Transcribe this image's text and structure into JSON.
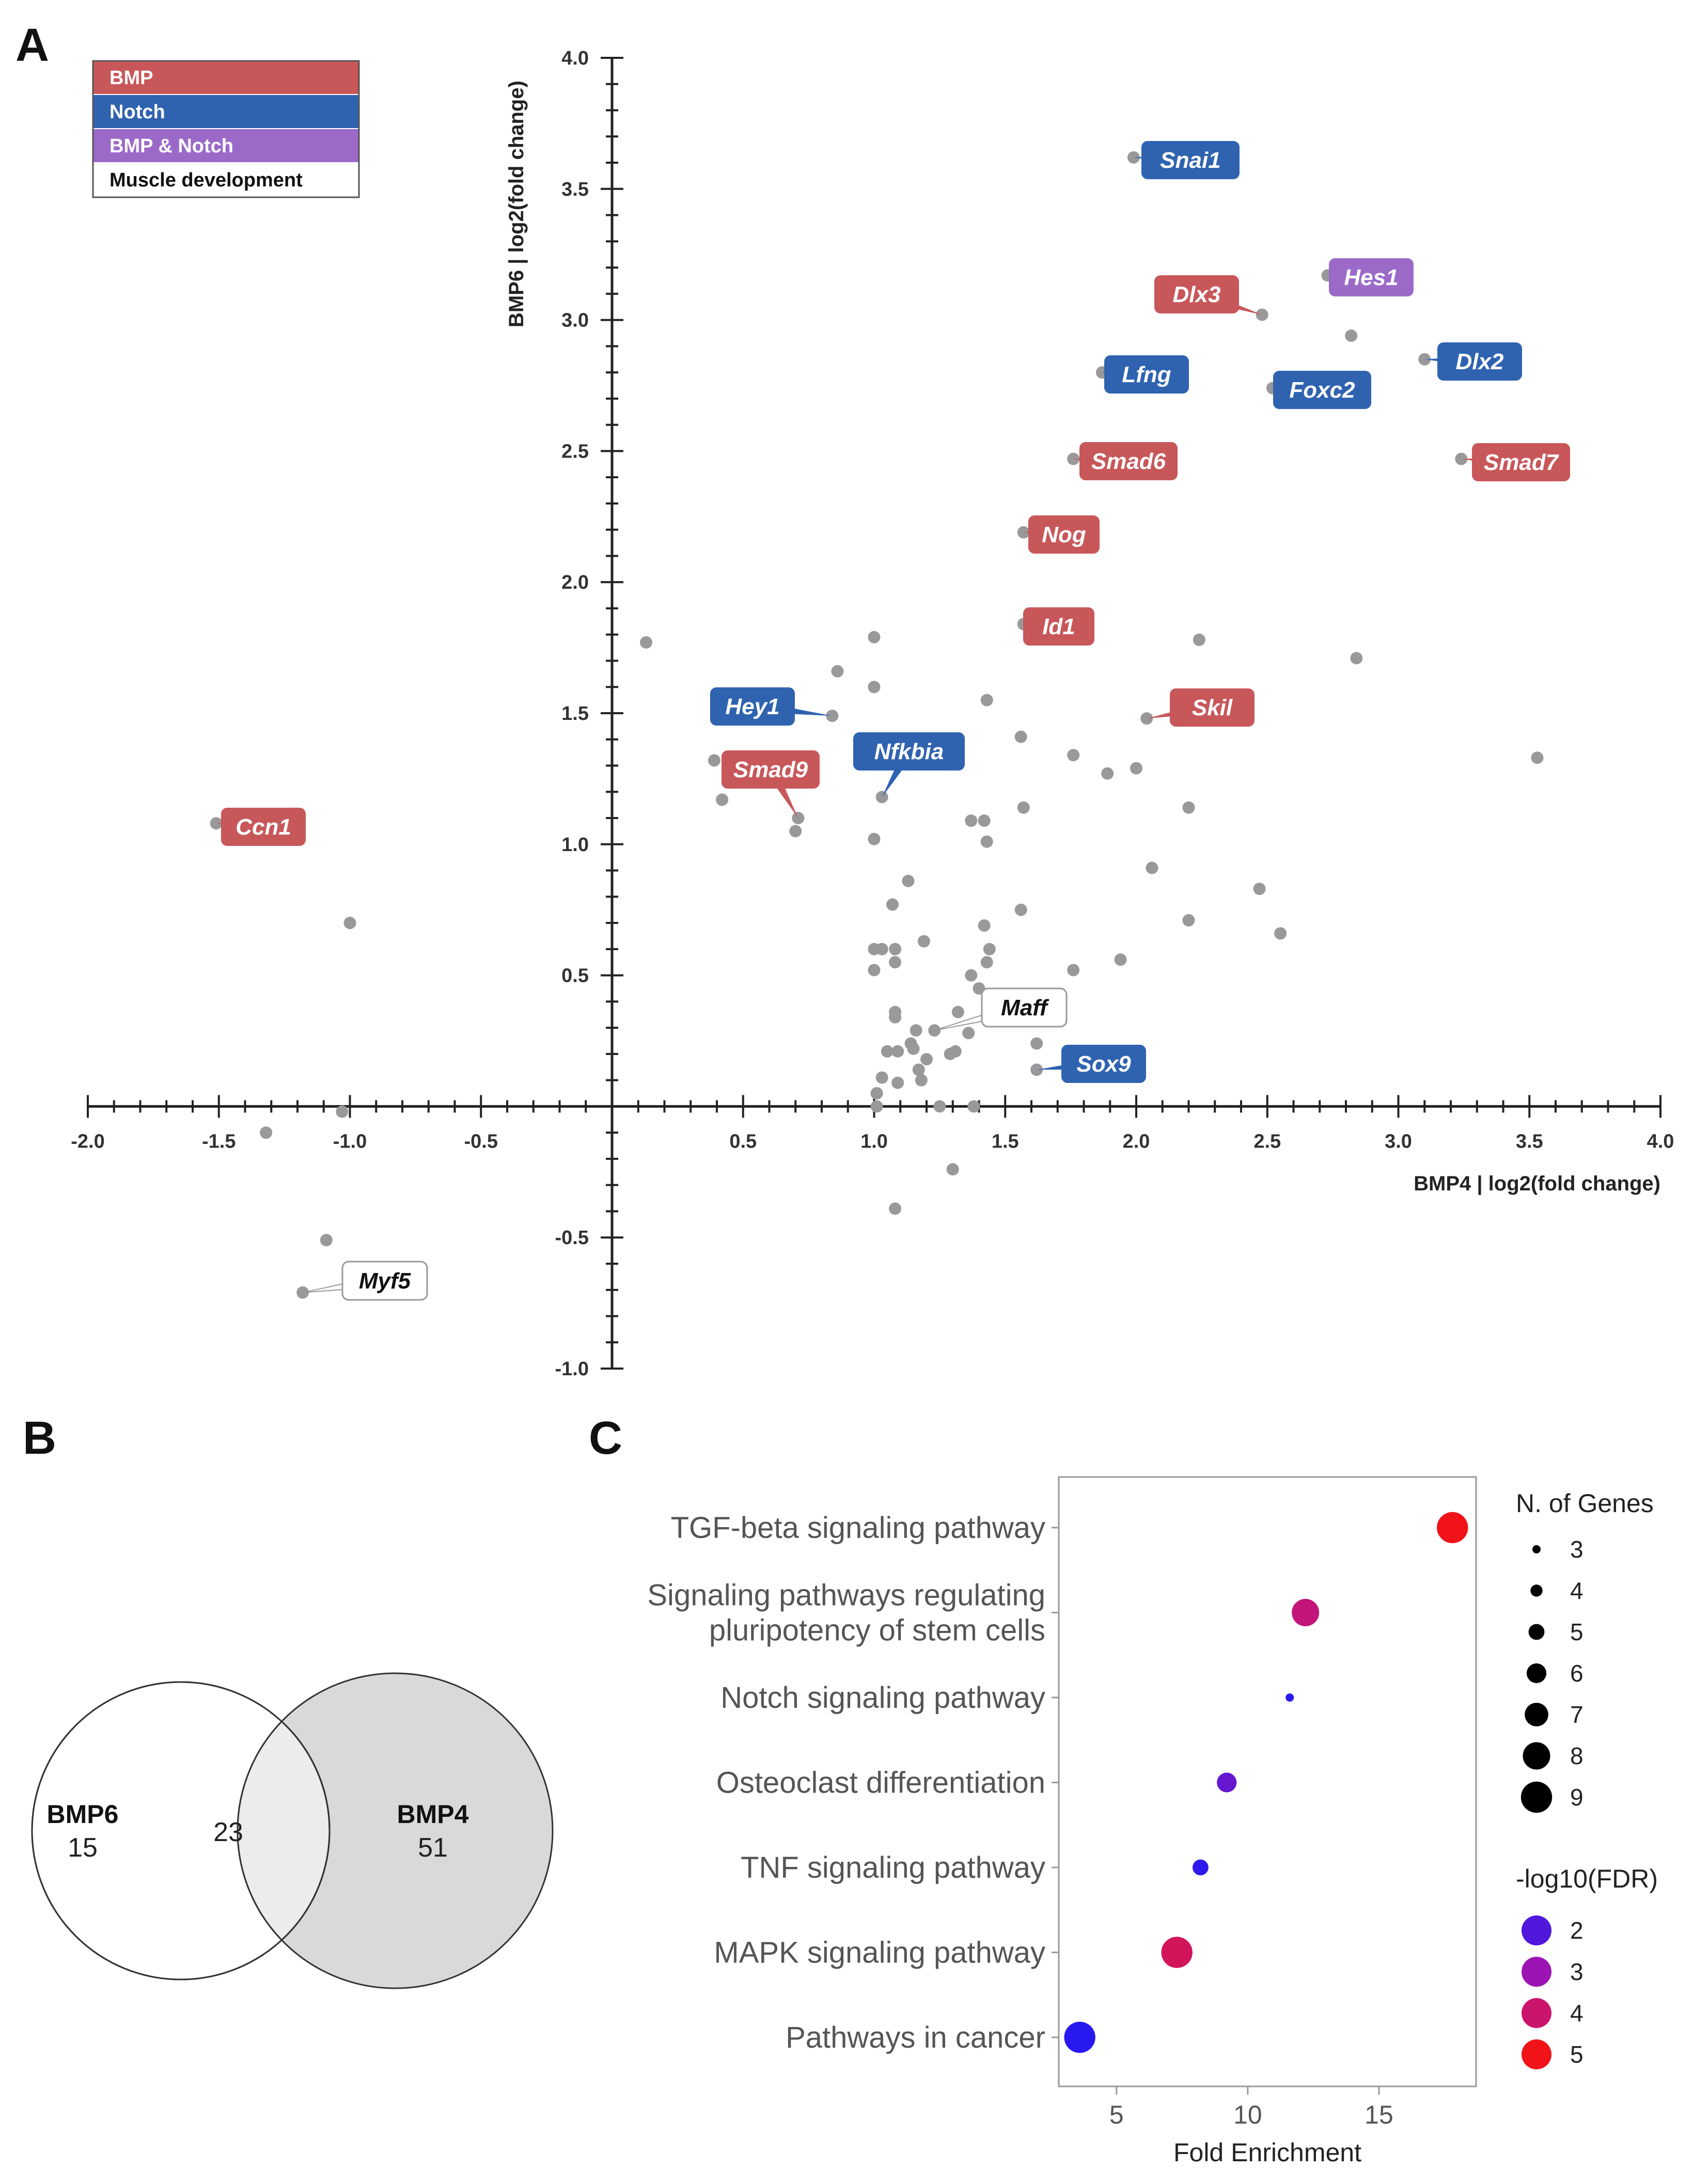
{
  "panel_letters": {
    "a": "A",
    "b": "B",
    "c": "C"
  },
  "chart_data": [
    {
      "type": "scatter",
      "panel": "A",
      "xlabel": "BMP4 | log2(fold change)",
      "ylabel": "BMP6 | log2(fold change)",
      "xlim": [
        -2.0,
        4.0
      ],
      "ylim": [
        -1.0,
        4.0
      ],
      "x_ticks": [
        "-2.0",
        "-1.5",
        "-1.0",
        "-0.5",
        "0.5",
        "1.0",
        "1.5",
        "2.0",
        "2.5",
        "3.0",
        "3.5",
        "4.0"
      ],
      "y_ticks": [
        "-1.0",
        "-0.5",
        "0.5",
        "1.0",
        "1.5",
        "2.0",
        "2.5",
        "3.0",
        "3.5",
        "4.0"
      ],
      "legend": [
        {
          "label": "BMP",
          "color": "#c8575a"
        },
        {
          "label": "Notch",
          "color": "#2f63b0"
        },
        {
          "label": "BMP & Notch",
          "color": "#9b6ac9"
        },
        {
          "label": "Muscle development",
          "color": "#ffffff"
        }
      ],
      "labeled_genes": [
        {
          "name": "Snai1",
          "x": 1.99,
          "y": 3.62,
          "category": "Notch"
        },
        {
          "name": "Dlx3",
          "x": 2.48,
          "y": 3.02,
          "category": "BMP"
        },
        {
          "name": "Hes1",
          "x": 2.73,
          "y": 3.17,
          "category": "BMP & Notch"
        },
        {
          "name": "Lfng",
          "x": 1.87,
          "y": 2.8,
          "category": "Notch"
        },
        {
          "name": "Foxc2",
          "x": 2.52,
          "y": 2.74,
          "category": "Notch"
        },
        {
          "name": "Dlx2",
          "x": 3.1,
          "y": 2.85,
          "category": "Notch"
        },
        {
          "name": "Smad6",
          "x": 1.76,
          "y": 2.47,
          "category": "BMP"
        },
        {
          "name": "Smad7",
          "x": 3.24,
          "y": 2.47,
          "category": "BMP"
        },
        {
          "name": "Nog",
          "x": 1.57,
          "y": 2.19,
          "category": "BMP"
        },
        {
          "name": "Id1",
          "x": 1.57,
          "y": 1.84,
          "category": "BMP"
        },
        {
          "name": "Hey1",
          "x": 0.84,
          "y": 1.49,
          "category": "Notch"
        },
        {
          "name": "Skil",
          "x": 2.04,
          "y": 1.48,
          "category": "BMP"
        },
        {
          "name": "Nfkbia",
          "x": 1.03,
          "y": 1.18,
          "category": "Notch"
        },
        {
          "name": "Smad9",
          "x": 0.71,
          "y": 1.1,
          "category": "BMP"
        },
        {
          "name": "Ccn1",
          "x": -1.51,
          "y": 1.08,
          "category": "BMP"
        },
        {
          "name": "Maff",
          "x": 1.23,
          "y": 0.29,
          "category": "Muscle development"
        },
        {
          "name": "Sox9",
          "x": 1.62,
          "y": 0.14,
          "category": "Notch"
        },
        {
          "name": "Myf5",
          "x": -1.18,
          "y": -0.71,
          "category": "Muscle development"
        }
      ],
      "other_points": [
        [
          0.13,
          1.77
        ],
        [
          0.39,
          1.32
        ],
        [
          0.42,
          1.17
        ],
        [
          0.7,
          1.05
        ],
        [
          0.86,
          1.66
        ],
        [
          1.0,
          1.79
        ],
        [
          1.0,
          1.6
        ],
        [
          1.0,
          1.02
        ],
        [
          1.13,
          0.86
        ],
        [
          1.07,
          0.77
        ],
        [
          1.0,
          0.6
        ],
        [
          1.03,
          0.6
        ],
        [
          1.08,
          0.6
        ],
        [
          1.0,
          0.52
        ],
        [
          1.08,
          0.55
        ],
        [
          1.08,
          0.36
        ],
        [
          1.08,
          0.34
        ],
        [
          1.16,
          0.29
        ],
        [
          1.09,
          0.21
        ],
        [
          1.05,
          0.21
        ],
        [
          1.14,
          0.24
        ],
        [
          1.15,
          0.22
        ],
        [
          1.17,
          0.14
        ],
        [
          1.2,
          0.18
        ],
        [
          1.03,
          0.11
        ],
        [
          1.09,
          0.09
        ],
        [
          1.18,
          0.1
        ],
        [
          1.01,
          0.05
        ],
        [
          1.01,
          0.0
        ],
        [
          1.25,
          0.0
        ],
        [
          1.38,
          0.0
        ],
        [
          1.3,
          -0.24
        ],
        [
          1.08,
          -0.39
        ],
        [
          1.19,
          0.63
        ],
        [
          1.32,
          0.36
        ],
        [
          1.37,
          0.5
        ],
        [
          1.4,
          0.45
        ],
        [
          1.43,
          0.55
        ],
        [
          1.44,
          0.6
        ],
        [
          1.42,
          0.69
        ],
        [
          1.29,
          0.2
        ],
        [
          1.31,
          0.21
        ],
        [
          1.36,
          0.28
        ],
        [
          1.37,
          1.09
        ],
        [
          1.42,
          1.09
        ],
        [
          1.43,
          1.01
        ],
        [
          1.43,
          1.55
        ],
        [
          1.56,
          1.41
        ],
        [
          1.57,
          1.14
        ],
        [
          1.56,
          0.75
        ],
        [
          1.76,
          0.52
        ],
        [
          1.76,
          1.34
        ],
        [
          1.89,
          1.27
        ],
        [
          1.94,
          0.56
        ],
        [
          2.0,
          1.29
        ],
        [
          2.06,
          0.91
        ],
        [
          2.2,
          1.14
        ],
        [
          2.2,
          0.71
        ],
        [
          2.24,
          1.78
        ],
        [
          2.47,
          0.83
        ],
        [
          2.55,
          0.66
        ],
        [
          2.82,
          2.94
        ],
        [
          2.84,
          1.71
        ],
        [
          3.53,
          1.33
        ],
        [
          1.62,
          0.24
        ],
        [
          -1.0,
          0.7
        ],
        [
          -1.32,
          -0.1
        ],
        [
          -1.03,
          -0.02
        ],
        [
          -1.09,
          -0.51
        ]
      ]
    },
    {
      "type": "venn",
      "panel": "B",
      "sets": [
        {
          "name": "BMP6",
          "unique": "15"
        },
        {
          "name": "BMP4",
          "unique": "51"
        }
      ],
      "intersection": "23"
    },
    {
      "type": "scatter",
      "panel": "C",
      "subtype": "dot-plot",
      "xlabel": "Fold Enrichment",
      "xlim": [
        2.8,
        18.7
      ],
      "x_ticks": [
        5,
        10,
        15
      ],
      "pathways": [
        {
          "label": "TGF-beta signaling pathway",
          "fold_enrichment": 17.8,
          "n_genes": 9,
          "neg_log10_fdr": 5.0
        },
        {
          "label": "Signaling pathways regulating pluripotency of stem cells",
          "label_lines": [
            "Signaling pathways regulating",
            "pluripotency of stem cells"
          ],
          "fold_enrichment": 12.2,
          "n_genes": 8,
          "neg_log10_fdr": 3.8
        },
        {
          "label": "Notch signaling pathway",
          "fold_enrichment": 11.6,
          "n_genes": 3,
          "neg_log10_fdr": 1.5
        },
        {
          "label": "Osteoclast differentiation",
          "fold_enrichment": 9.2,
          "n_genes": 6,
          "neg_log10_fdr": 2.3
        },
        {
          "label": "TNF signaling pathway",
          "fold_enrichment": 8.2,
          "n_genes": 5,
          "neg_log10_fdr": 1.6
        },
        {
          "label": "MAPK signaling pathway",
          "fold_enrichment": 7.3,
          "n_genes": 9,
          "neg_log10_fdr": 4.2
        },
        {
          "label": "Pathways in cancer",
          "fold_enrichment": 3.6,
          "n_genes": 9,
          "neg_log10_fdr": 1.5
        }
      ],
      "size_legend": {
        "title": "N. of Genes",
        "values": [
          3,
          4,
          5,
          6,
          7,
          8,
          9
        ]
      },
      "color_legend": {
        "title": "-log10(FDR)",
        "values": [
          2,
          3,
          4,
          5
        ],
        "color_low": "#2a1bf0",
        "color_high": "#f01313"
      }
    }
  ]
}
